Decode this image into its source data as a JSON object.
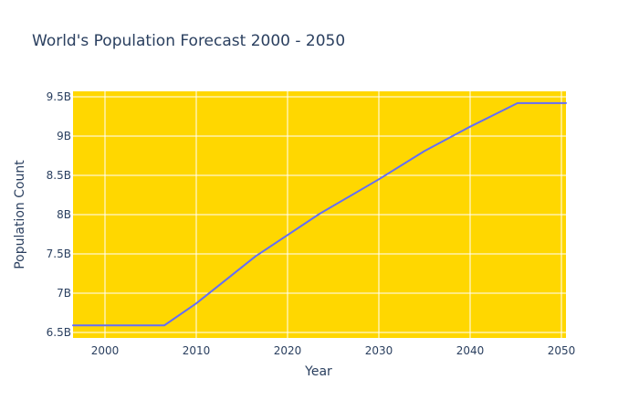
{
  "chart_data": {
    "type": "line",
    "title": "World's Population Forecast 2000 - 2050",
    "xlabel": "Year",
    "ylabel": "Population Count",
    "xlim": [
      1996.5,
      2050.5
    ],
    "ylim": [
      6.43,
      9.57
    ],
    "x_ticks": [
      2000,
      2010,
      2020,
      2030,
      2040,
      2050
    ],
    "x_tick_labels": [
      "2000",
      "2010",
      "2020",
      "2030",
      "2040",
      "2050"
    ],
    "y_ticks": [
      6.5,
      7.0,
      7.5,
      8.0,
      8.5,
      9.0,
      9.5
    ],
    "y_tick_labels": [
      "6.5B",
      "7B",
      "7.5B",
      "8B",
      "8.5B",
      "9B",
      "9.5B"
    ],
    "grid": true,
    "legend": "none",
    "colors": {
      "plot_background": "#FFD700",
      "line": "#636efa",
      "grid": "#ffffff",
      "text": "#2a3f5f"
    },
    "series": [
      {
        "x": [
          1996.5,
          2006.5,
          2010,
          2016.5,
          2023.5,
          2030,
          2035,
          2040,
          2045.2,
          2050.5
        ],
        "values": [
          6.59,
          6.59,
          6.87,
          7.47,
          8.01,
          8.45,
          8.81,
          9.12,
          9.42,
          9.42
        ]
      }
    ]
  }
}
